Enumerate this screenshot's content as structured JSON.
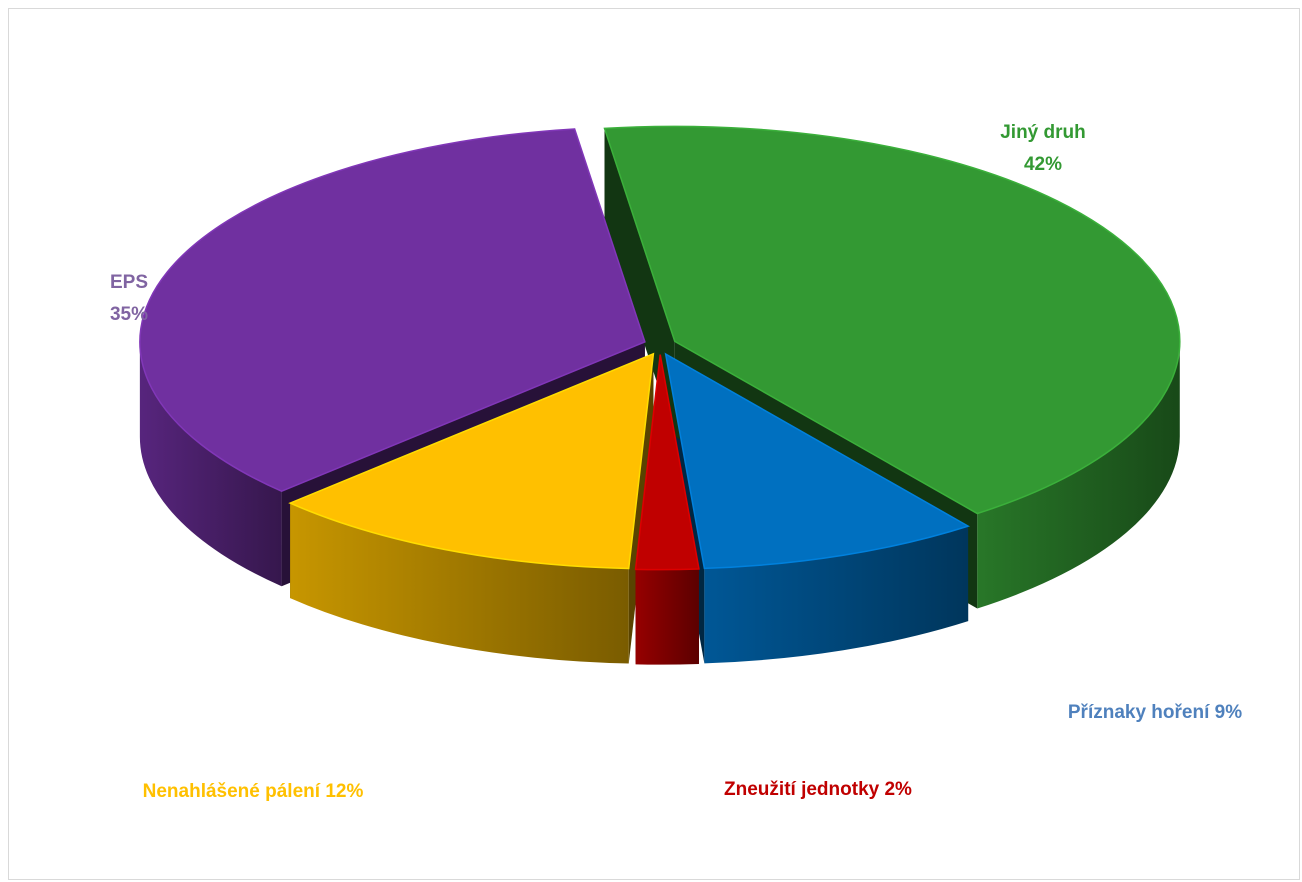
{
  "chart_data": {
    "type": "pie",
    "style": "3d-exploded",
    "title": "",
    "legend": "none",
    "slices": [
      {
        "label": "Jiný druh",
        "value": 42,
        "display": "42%",
        "color": "#339933"
      },
      {
        "label": "Příznaky hoření",
        "value": 9,
        "display": "9%",
        "color": "#0070C0"
      },
      {
        "label": "Zneužití jednotky",
        "value": 2,
        "display": "2%",
        "color": "#C00000"
      },
      {
        "label": "Nenahlášené pálení",
        "value": 12,
        "display": "12%",
        "color": "#FFC000"
      },
      {
        "label": "EPS",
        "value": 35,
        "display": "35%",
        "color": "#7030A0"
      }
    ]
  },
  "label_colors": {
    "Jiný druh": "#339933",
    "Příznaky hoření": "#4F81BD",
    "Zneužití jednotky": "#C00000",
    "Nenahlášené pálení": "#FFC000",
    "EPS": "#8064A2"
  }
}
